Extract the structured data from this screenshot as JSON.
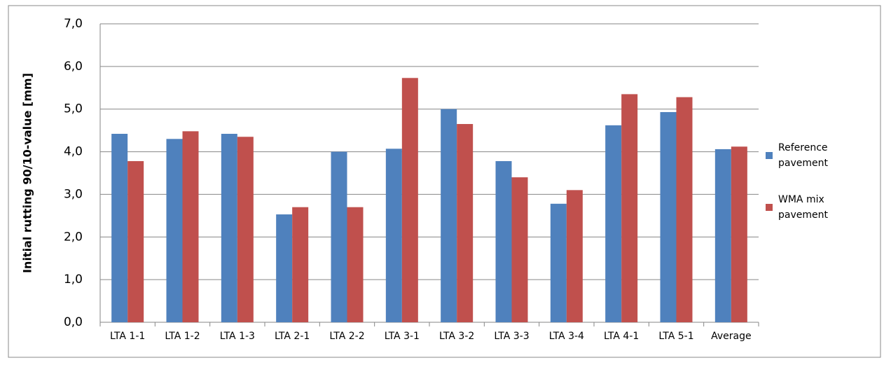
{
  "chart_data": {
    "type": "bar",
    "y_label": "Initial rutting 90/10-value [mm]",
    "categories": [
      "LTA 1-1",
      "LTA 1-2",
      "LTA 1-3",
      "LTA 2-1",
      "LTA 2-2",
      "LTA 3-1",
      "LTA 3-2",
      "LTA 3-3",
      "LTA 3-4",
      "LTA 4-1",
      "LTA 5-1",
      "Average"
    ],
    "series": [
      {
        "name": "Reference pavement",
        "color": "#4f81bd",
        "values": [
          4.42,
          4.3,
          4.42,
          2.53,
          4.0,
          4.07,
          5.0,
          3.78,
          2.78,
          4.62,
          4.93,
          4.06
        ]
      },
      {
        "name": "WMA mix pavement",
        "color": "#c0504d",
        "values": [
          3.78,
          4.48,
          4.35,
          2.7,
          2.7,
          5.73,
          4.65,
          3.4,
          3.1,
          5.35,
          5.28,
          4.12
        ]
      }
    ],
    "ylim": [
      0,
      7
    ],
    "yticks": [
      {
        "value": 0,
        "label": "0,0"
      },
      {
        "value": 1,
        "label": "1,0"
      },
      {
        "value": 2,
        "label": "2,0"
      },
      {
        "value": 3,
        "label": "3,0"
      },
      {
        "value": 4,
        "label": "4,0"
      },
      {
        "value": 5,
        "label": "5,0"
      },
      {
        "value": 6,
        "label": "6,0"
      },
      {
        "value": 7,
        "label": "7,0"
      }
    ],
    "grid": true,
    "legend": "right"
  }
}
